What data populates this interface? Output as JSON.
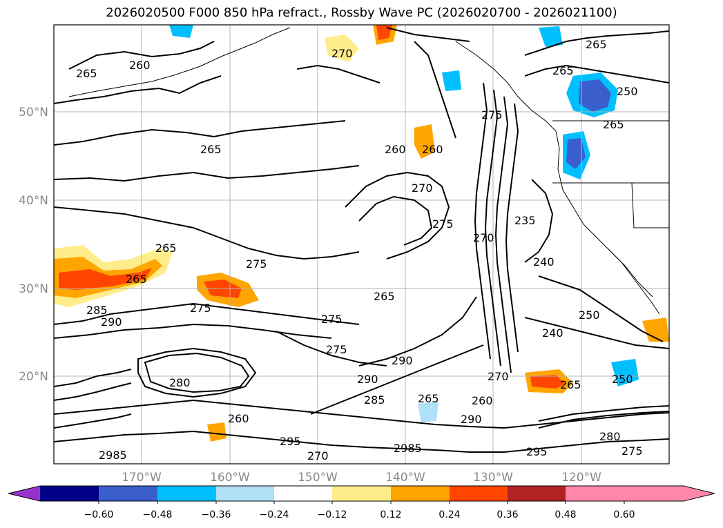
{
  "title": "2026020500 F000 850 hPa refract., Rossby Wave PC (2026020700 - 2026021100)",
  "latitude_labels": [
    "50°N",
    "40°N",
    "30°N",
    "20°N"
  ],
  "longitude_labels": [
    "170°W",
    "160°W",
    "150°W",
    "140°W",
    "130°W",
    "120°W"
  ],
  "colorbar": {
    "ticks": [
      "−0.60",
      "−0.48",
      "−0.36",
      "−0.24",
      "−0.12",
      "0.12",
      "0.24",
      "0.36",
      "0.48",
      "0.60"
    ],
    "colors": [
      "#9932cc",
      "#00008b",
      "#3a5fcd",
      "#00bfff",
      "#b0e0f6",
      "#ffffff",
      "#ffec8b",
      "#ffa500",
      "#ff4500",
      "#b22222",
      "#ff88aa"
    ]
  },
  "contour_labels": [
    "265",
    "260",
    "270",
    "265",
    "250",
    "265",
    "265",
    "260",
    "260",
    "270",
    "275",
    "275",
    "235",
    "265",
    "265",
    "275",
    "265",
    "240",
    "270",
    "275",
    "265",
    "275",
    "290",
    "290",
    "285",
    "290",
    "285",
    "265",
    "260",
    "270",
    "290",
    "295",
    "260",
    "250",
    "240",
    "265",
    "250",
    "275",
    "2985",
    "280",
    "270",
    "295",
    "280",
    "2985",
    "275"
  ]
}
